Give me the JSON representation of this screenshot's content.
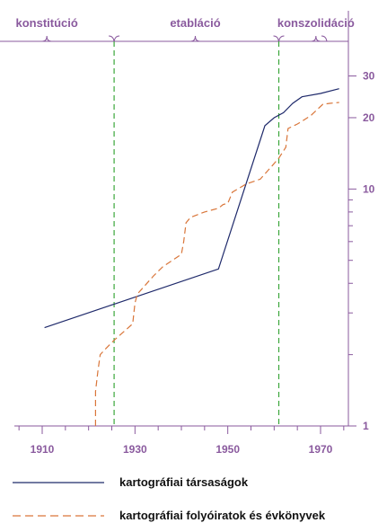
{
  "colors": {
    "axis": "#8a5a9e",
    "series_solid": "#1f2a6b",
    "series_dashed": "#d9763a",
    "phase_divider": "#3aa63a"
  },
  "chart_data": {
    "type": "line",
    "title": "",
    "xlabel": "",
    "ylabel": "",
    "y_scale": "log",
    "xlim": [
      1904,
      1976
    ],
    "ylim": [
      1,
      42
    ],
    "x_ticks": [
      1910,
      1930,
      1950,
      1970
    ],
    "x_tick_labels": [
      "1910",
      "1930",
      "1950",
      "1970"
    ],
    "y_ticks": [
      1,
      10,
      20,
      30
    ],
    "y_tick_labels": [
      "1",
      "10",
      "20",
      "30"
    ],
    "y_minor_ticks": [
      2,
      3,
      4,
      5,
      6,
      7,
      8,
      9
    ],
    "phases": [
      {
        "label": "konstitúció",
        "start": 1904,
        "end": 1925.5,
        "label_x": 1911
      },
      {
        "label": "etabláció",
        "start": 1925.5,
        "end": 1961,
        "label_x": 1943
      },
      {
        "label": "konszolidáció",
        "start": 1961,
        "end": 1976,
        "label_x": 1969
      }
    ],
    "phase_dividers": [
      1925.5,
      1961
    ],
    "series": [
      {
        "name": "kartográfiai társaságok",
        "style": "solid",
        "points": [
          [
            1910.5,
            2.6
          ],
          [
            1948,
            4.6
          ],
          [
            1958,
            18.5
          ],
          [
            1960,
            20
          ],
          [
            1962,
            21
          ],
          [
            1964,
            23
          ],
          [
            1966,
            24.5
          ],
          [
            1970,
            25.3
          ],
          [
            1974,
            26.5
          ]
        ]
      },
      {
        "name": "kartográfiai folyóiratok és évkönyvek",
        "style": "dashed",
        "points": [
          [
            1921.5,
            1.0
          ],
          [
            1921.5,
            1.4
          ],
          [
            1922,
            1.7
          ],
          [
            1922.5,
            2.0
          ],
          [
            1923.5,
            2.1
          ],
          [
            1925.5,
            2.3
          ],
          [
            1929.5,
            2.7
          ],
          [
            1930,
            3.3
          ],
          [
            1930.5,
            3.6
          ],
          [
            1934,
            4.3
          ],
          [
            1936,
            4.7
          ],
          [
            1940,
            5.3
          ],
          [
            1940.5,
            6.0
          ],
          [
            1941,
            7.2
          ],
          [
            1942,
            7.6
          ],
          [
            1945,
            8.0
          ],
          [
            1948,
            8.3
          ],
          [
            1949,
            8.6
          ],
          [
            1950,
            8.7
          ],
          [
            1951,
            9.7
          ],
          [
            1954,
            10.5
          ],
          [
            1957,
            11.0
          ],
          [
            1959.5,
            12.5
          ],
          [
            1961,
            13.5
          ],
          [
            1962.5,
            15.0
          ],
          [
            1963,
            18.0
          ],
          [
            1965,
            18.8
          ],
          [
            1966,
            19.3
          ],
          [
            1968,
            20.5
          ],
          [
            1970.5,
            22.8
          ],
          [
            1972,
            23.0
          ],
          [
            1974,
            23.2
          ]
        ]
      }
    ],
    "legend": {
      "position": "bottom",
      "items": [
        "kartográfiai társaságok",
        "kartográfiai folyóiratok és évkönyvek"
      ]
    }
  }
}
